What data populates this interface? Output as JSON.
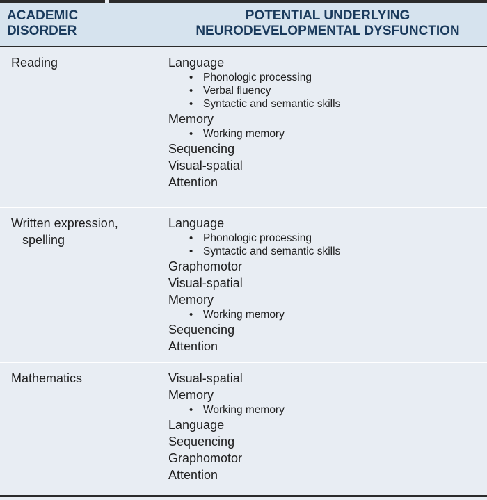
{
  "header": {
    "left_line1": "ACADEMIC",
    "left_line2": "DISORDER",
    "right_line1": "POTENTIAL UNDERLYING",
    "right_line2": "NEURODEVELOPMENTAL DYSFUNCTION"
  },
  "rows": [
    {
      "disorder_line1": "Reading",
      "items": [
        {
          "label": "Language",
          "subs": [
            "Phonologic processing",
            "Verbal fluency",
            "Syntactic and semantic skills"
          ]
        },
        {
          "label": "Memory",
          "subs": [
            "Working memory"
          ]
        },
        {
          "label": "Sequencing",
          "subs": []
        },
        {
          "label": "Visual-spatial",
          "subs": []
        },
        {
          "label": "Attention",
          "subs": []
        }
      ]
    },
    {
      "disorder_line1": "Written expression,",
      "disorder_line2": "spelling",
      "items": [
        {
          "label": "Language",
          "subs": [
            "Phonologic processing",
            "Syntactic and semantic skills"
          ]
        },
        {
          "label": "Graphomotor",
          "subs": []
        },
        {
          "label": "Visual-spatial",
          "subs": []
        },
        {
          "label": "Memory",
          "subs": [
            "Working memory"
          ]
        },
        {
          "label": "Sequencing",
          "subs": []
        },
        {
          "label": "Attention",
          "subs": []
        }
      ]
    },
    {
      "disorder_line1": "Mathematics",
      "items": [
        {
          "label": "Visual-spatial",
          "subs": []
        },
        {
          "label": "Memory",
          "subs": [
            "Working memory"
          ]
        },
        {
          "label": "Language",
          "subs": []
        },
        {
          "label": "Sequencing",
          "subs": []
        },
        {
          "label": "Graphomotor",
          "subs": []
        },
        {
          "label": "Attention",
          "subs": []
        }
      ]
    }
  ],
  "colors": {
    "header_bg": "#d6e3ee",
    "body_bg": "#e8edf3",
    "header_text": "#1a3a5c",
    "rule": "#2b2b2b"
  }
}
